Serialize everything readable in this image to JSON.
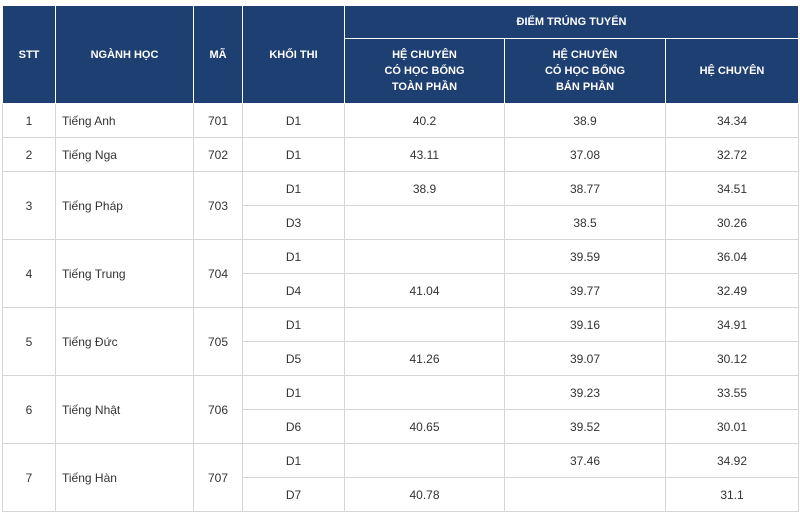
{
  "header": {
    "stt": "STT",
    "major": "NGÀNH HỌC",
    "code": "MÃ",
    "block": "KHỐI THI",
    "group": "ĐIỂM TRÚNG TUYỂN",
    "subheaders": [
      [
        "HỆ CHUYÊN",
        "CÓ HỌC BỔNG",
        "TOÀN PHẦN"
      ],
      [
        "HỆ CHUYÊN",
        "CÓ HỌC BỔNG",
        "BÁN PHẦN"
      ],
      [
        "HỆ CHUYÊN"
      ]
    ]
  },
  "table": {
    "rows": [
      {
        "stt": "1",
        "major": "Tiếng Anh",
        "code": "701",
        "subrows": [
          {
            "block": "D1",
            "scores": [
              40.2,
              38.9,
              34.34
            ]
          }
        ]
      },
      {
        "stt": "2",
        "major": "Tiếng Nga",
        "code": "702",
        "subrows": [
          {
            "block": "D1",
            "scores": [
              43.11,
              37.08,
              32.72
            ]
          }
        ]
      },
      {
        "stt": "3",
        "major": "Tiếng Pháp",
        "code": "703",
        "subrows": [
          {
            "block": "D1",
            "scores": [
              38.9,
              38.77,
              34.51
            ]
          },
          {
            "block": "D3",
            "scores": [
              null,
              38.5,
              30.26
            ]
          }
        ]
      },
      {
        "stt": "4",
        "major": "Tiếng Trung",
        "code": "704",
        "subrows": [
          {
            "block": "D1",
            "scores": [
              null,
              39.59,
              36.04
            ]
          },
          {
            "block": "D4",
            "scores": [
              41.04,
              39.77,
              32.49
            ]
          }
        ]
      },
      {
        "stt": "5",
        "major": "Tiếng Đức",
        "code": "705",
        "subrows": [
          {
            "block": "D1",
            "scores": [
              null,
              39.16,
              34.91
            ]
          },
          {
            "block": "D5",
            "scores": [
              41.26,
              39.07,
              30.12
            ]
          }
        ]
      },
      {
        "stt": "6",
        "major": "Tiếng Nhật",
        "code": "706",
        "subrows": [
          {
            "block": "D1",
            "scores": [
              null,
              39.23,
              33.55
            ]
          },
          {
            "block": "D6",
            "scores": [
              40.65,
              39.52,
              30.01
            ]
          }
        ]
      },
      {
        "stt": "7",
        "major": "Tiếng Hàn",
        "code": "707",
        "subrows": [
          {
            "block": "D1",
            "scores": [
              null,
              37.46,
              34.92
            ]
          },
          {
            "block": "D7",
            "scores": [
              40.78,
              null,
              31.1
            ]
          }
        ]
      }
    ]
  }
}
